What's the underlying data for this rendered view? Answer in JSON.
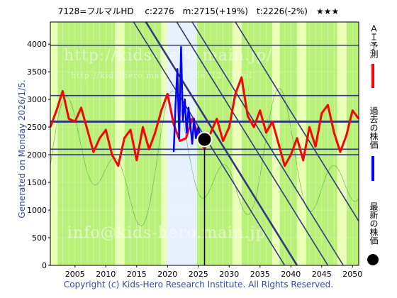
{
  "header": {
    "title": "7128=フルマルHD　 c:2276　m:2715(+19%)　t:2226(-2%)　★★★"
  },
  "side_label": "Generated on Monday 2026/1/5.",
  "footer": "Copyright (c) Kids-Hero Research Institute. All Rights Reserved.",
  "watermarks": [
    "http://kids-hero.main.jp/",
    "http://kids-hero.main.jp/code7128.html",
    "info@kids-hero.main.jp"
  ],
  "legend": {
    "ai": "ＡＩ予測",
    "past": "過去の株価",
    "latest": "最新の株価"
  },
  "colors": {
    "ai": "#ff0000",
    "past": "#0000ff",
    "latest": "#000000",
    "trend": "#2e3a7a",
    "green_bg": "#b8f07a",
    "light_green": "#e9ffb4",
    "hist_bg": "#e6f0ff"
  },
  "chart_data": {
    "type": "line",
    "xlim": [
      2001,
      2051
    ],
    "ylim": [
      0,
      4400
    ],
    "x_ticks": [
      "2005",
      "2010",
      "2015",
      "2020",
      "2025",
      "2030",
      "2035",
      "2040",
      "2045",
      "2050"
    ],
    "y_ticks": [
      "0",
      "500",
      "1000",
      "1500",
      "2000",
      "2500",
      "3000",
      "3500",
      "4000"
    ],
    "horizontal_levels": [
      2000,
      2100,
      2600,
      3070,
      3980
    ],
    "latest": {
      "x": 2026.0,
      "y": 2276
    },
    "series": [
      {
        "key": "ai",
        "x": [
          2001,
          2002,
          2003,
          2004,
          2005,
          2006,
          2007,
          2008,
          2009,
          2010,
          2011,
          2012,
          2013,
          2014,
          2015,
          2016,
          2017,
          2018,
          2019,
          2020,
          2021,
          2022,
          2023,
          2024,
          2025,
          2026,
          2027,
          2028,
          2029,
          2030,
          2031,
          2032,
          2033,
          2034,
          2035,
          2036,
          2037,
          2038,
          2039,
          2040,
          2041,
          2042,
          2043,
          2044,
          2045,
          2046,
          2047,
          2048,
          2049,
          2050,
          2051
        ],
        "y": [
          2500,
          2800,
          3150,
          2650,
          2600,
          2850,
          2450,
          2050,
          2300,
          2450,
          2000,
          1800,
          2300,
          2450,
          1900,
          2500,
          2100,
          2400,
          2800,
          3100,
          2550,
          2250,
          2300,
          2650,
          2350,
          2100,
          2400,
          2650,
          2250,
          2500,
          3100,
          3400,
          2700,
          2500,
          2800,
          2400,
          2600,
          2200,
          1800,
          2000,
          2300,
          1900,
          2500,
          2150,
          2750,
          2900,
          2400,
          2050,
          2350,
          2800,
          2650
        ]
      },
      {
        "key": "past",
        "x": [
          2021.0,
          2021.3,
          2021.6,
          2021.9,
          2022.2,
          2022.5,
          2022.8,
          2023.1,
          2023.4,
          2023.7,
          2024.0,
          2024.3,
          2024.6,
          2025.0,
          2025.4
        ],
        "y": [
          2050,
          2900,
          3550,
          2300,
          3950,
          2600,
          3000,
          2400,
          2850,
          2550,
          2200,
          2650,
          2300,
          2500,
          2276
        ]
      }
    ]
  }
}
